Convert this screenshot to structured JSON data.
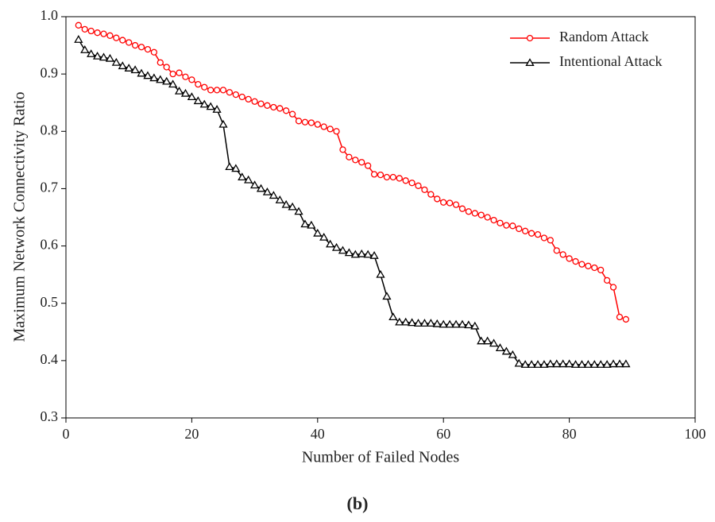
{
  "chart_data": {
    "type": "line",
    "x_label": "Number of Failed Nodes",
    "y_label": "Maximum Network Connectivity Ratio",
    "caption": "(b)",
    "x": [
      2,
      3,
      4,
      5,
      6,
      7,
      8,
      9,
      10,
      11,
      12,
      13,
      14,
      15,
      16,
      17,
      18,
      19,
      20,
      21,
      22,
      23,
      24,
      25,
      26,
      27,
      28,
      29,
      30,
      31,
      32,
      33,
      34,
      35,
      36,
      37,
      38,
      39,
      40,
      41,
      42,
      43,
      44,
      45,
      46,
      47,
      48,
      49,
      50,
      51,
      52,
      53,
      54,
      55,
      56,
      57,
      58,
      59,
      60,
      61,
      62,
      63,
      64,
      65,
      66,
      67,
      68,
      69,
      70,
      71,
      72,
      73,
      74,
      75,
      76,
      77,
      78,
      79,
      80,
      81,
      82,
      83,
      84,
      85,
      86,
      87,
      88,
      89
    ],
    "series": [
      {
        "name": "Random Attack",
        "color": "#ff0000",
        "marker": "circle",
        "values": [
          0.985,
          0.978,
          0.975,
          0.972,
          0.97,
          0.967,
          0.963,
          0.959,
          0.955,
          0.95,
          0.947,
          0.943,
          0.938,
          0.92,
          0.912,
          0.9,
          0.902,
          0.895,
          0.89,
          0.882,
          0.877,
          0.872,
          0.872,
          0.872,
          0.868,
          0.864,
          0.86,
          0.856,
          0.852,
          0.848,
          0.845,
          0.842,
          0.84,
          0.836,
          0.83,
          0.818,
          0.816,
          0.815,
          0.812,
          0.808,
          0.804,
          0.8,
          0.768,
          0.755,
          0.75,
          0.746,
          0.74,
          0.725,
          0.724,
          0.72,
          0.72,
          0.718,
          0.714,
          0.71,
          0.705,
          0.698,
          0.69,
          0.682,
          0.676,
          0.675,
          0.672,
          0.665,
          0.66,
          0.657,
          0.654,
          0.65,
          0.645,
          0.64,
          0.636,
          0.635,
          0.63,
          0.626,
          0.622,
          0.62,
          0.614,
          0.61,
          0.592,
          0.585,
          0.578,
          0.573,
          0.568,
          0.565,
          0.562,
          0.558,
          0.54,
          0.528,
          0.476,
          0.472
        ]
      },
      {
        "name": "Intentional Attack",
        "color": "#000000",
        "marker": "triangle",
        "values": [
          0.96,
          0.942,
          0.935,
          0.931,
          0.929,
          0.927,
          0.92,
          0.914,
          0.91,
          0.907,
          0.901,
          0.897,
          0.893,
          0.89,
          0.887,
          0.882,
          0.87,
          0.866,
          0.86,
          0.853,
          0.847,
          0.843,
          0.838,
          0.812,
          0.738,
          0.735,
          0.72,
          0.715,
          0.706,
          0.7,
          0.694,
          0.688,
          0.68,
          0.672,
          0.668,
          0.66,
          0.638,
          0.636,
          0.622,
          0.615,
          0.603,
          0.597,
          0.592,
          0.588,
          0.585,
          0.586,
          0.585,
          0.583,
          0.55,
          0.512,
          0.476,
          0.467,
          0.467,
          0.466,
          0.465,
          0.465,
          0.465,
          0.464,
          0.463,
          0.463,
          0.463,
          0.463,
          0.462,
          0.46,
          0.434,
          0.434,
          0.43,
          0.422,
          0.416,
          0.41,
          0.395,
          0.393,
          0.393,
          0.393,
          0.393,
          0.394,
          0.394,
          0.394,
          0.394,
          0.393,
          0.393,
          0.393,
          0.393,
          0.393,
          0.393,
          0.394,
          0.394,
          0.394
        ]
      }
    ],
    "xlim": [
      0,
      100
    ],
    "xticks": [
      0,
      20,
      40,
      60,
      80,
      100
    ],
    "ylim": [
      0.3,
      1.0
    ],
    "yticks": [
      0.3,
      0.4,
      0.5,
      0.6,
      0.7,
      0.8,
      0.9,
      {
        "value": 1.0,
        "label": "1.0"
      }
    ],
    "legend": "upper-right",
    "grid": false
  }
}
